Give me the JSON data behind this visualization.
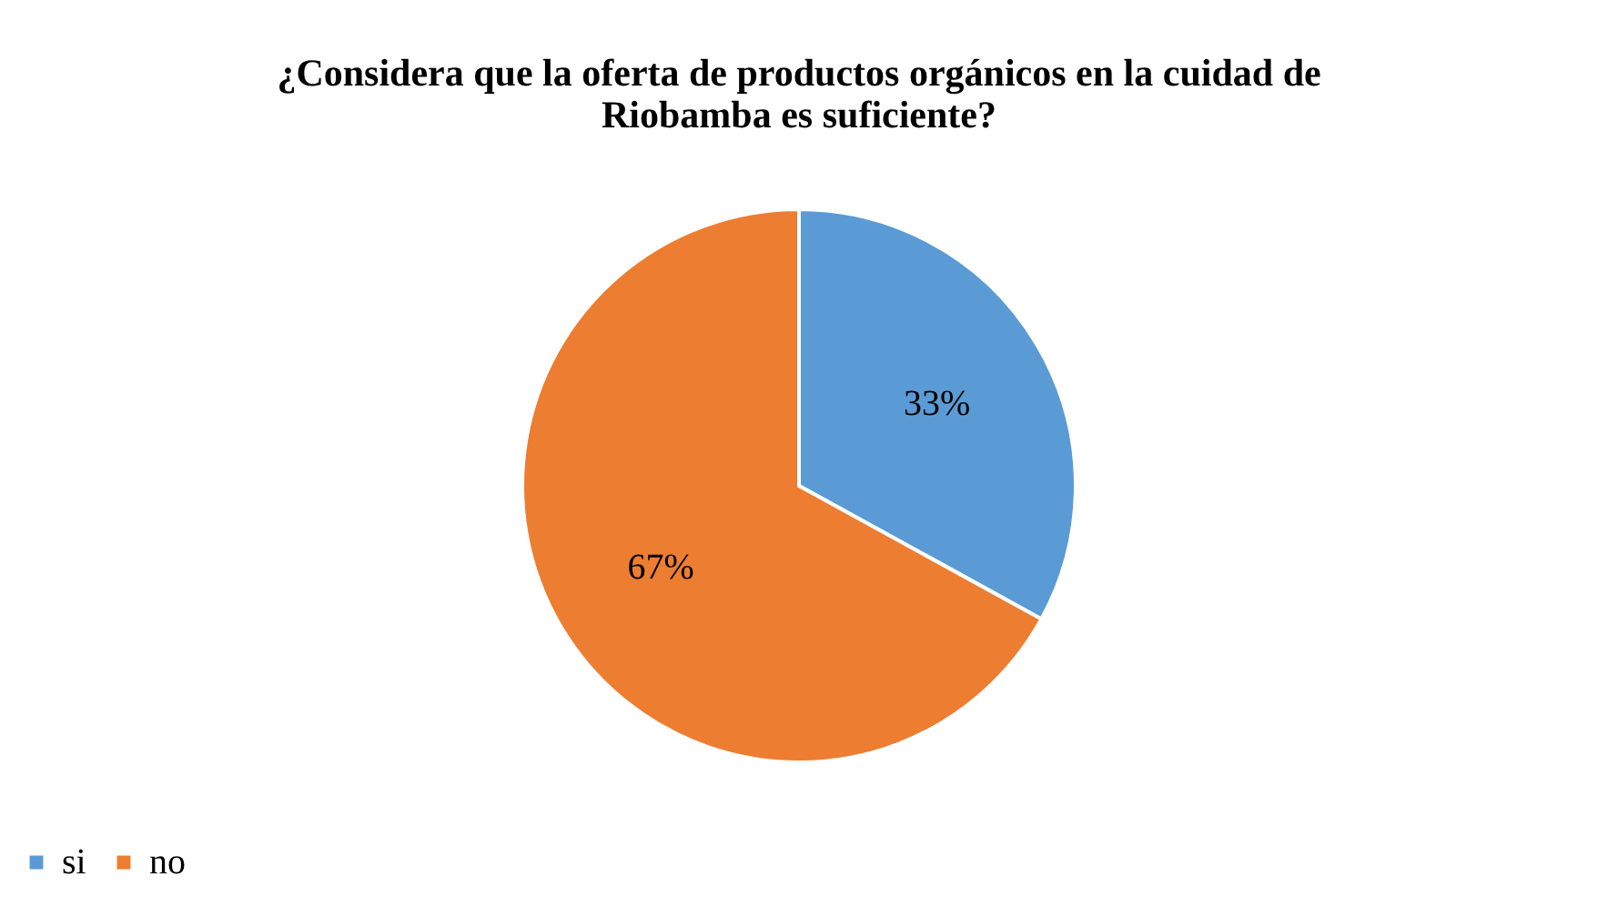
{
  "chart_data": {
    "type": "pie",
    "title": "¿Considera que la oferta de productos orgánicos en la cuidad de Riobamba es suficiente?",
    "categories": [
      "si",
      "no"
    ],
    "values": [
      33,
      67
    ],
    "colors": [
      "#5b9bd5",
      "#ed7d31"
    ],
    "value_labels": [
      "33%",
      "67%"
    ],
    "legend": "bottom"
  }
}
